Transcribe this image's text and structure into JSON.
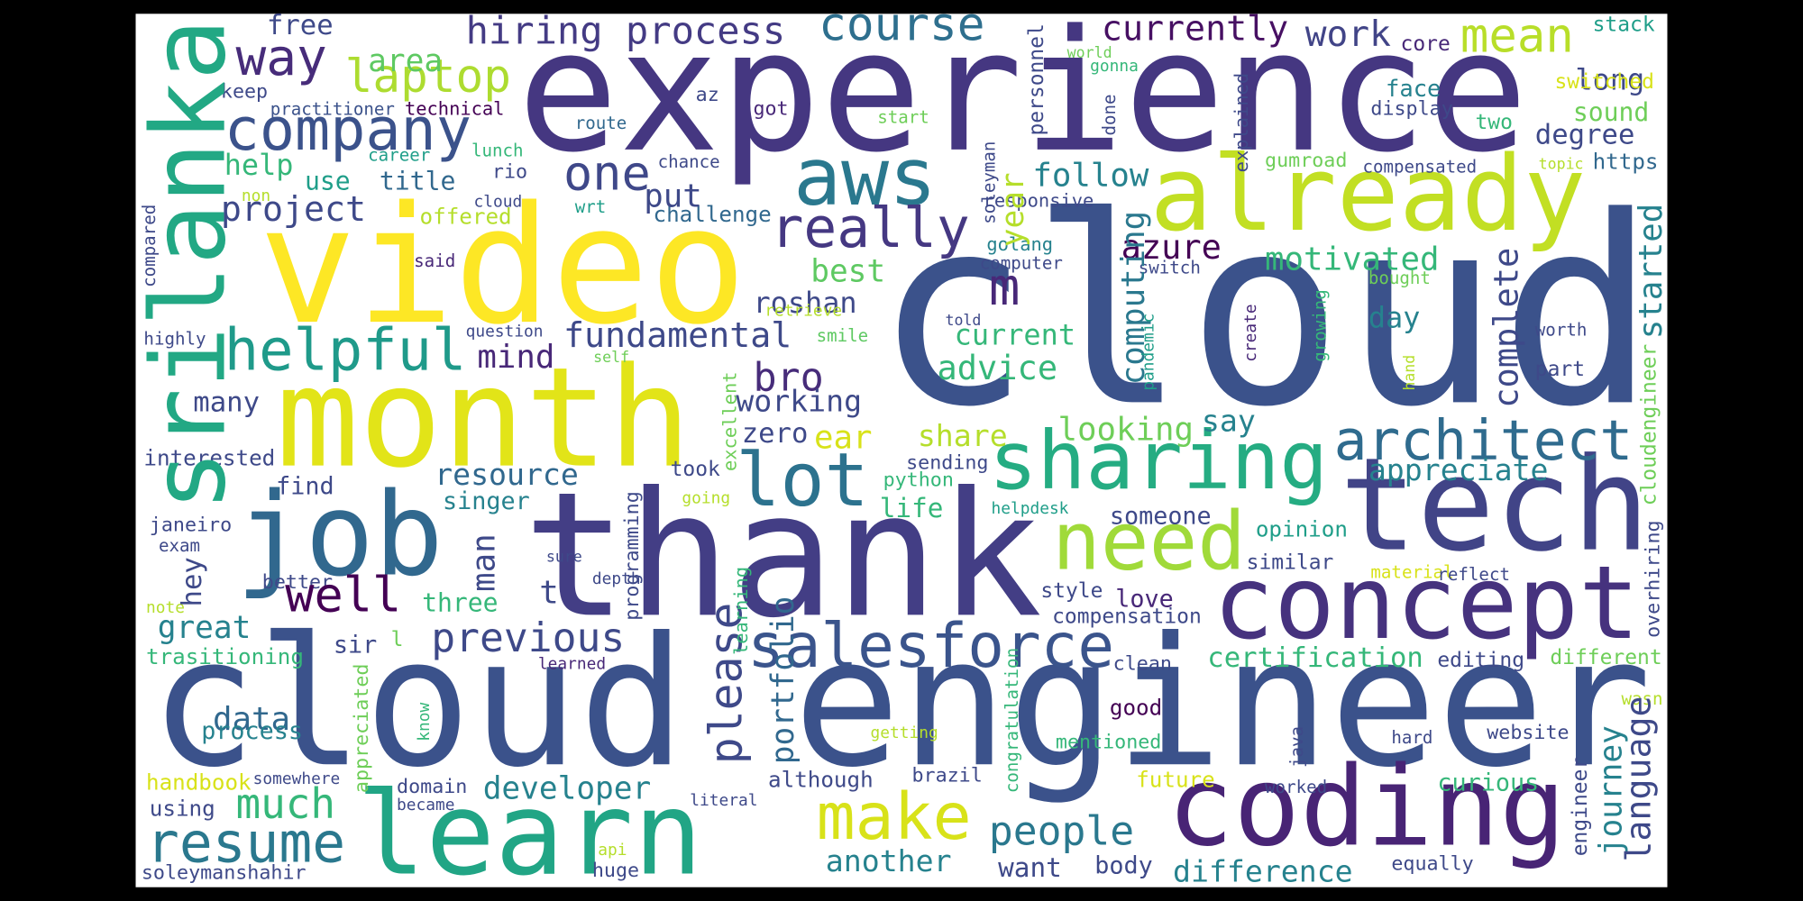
{
  "words": [
    "experience",
    "cloud",
    "video",
    "month",
    "thank",
    "job",
    "cloud engineer",
    "learn",
    "tech",
    "concept",
    "coding",
    "already",
    "aws",
    "sharing",
    "lot",
    "architect",
    "need",
    "salesforce",
    "make",
    "people",
    "really",
    "one",
    "company",
    "way",
    "laptop",
    "hiring process",
    "course",
    "currently",
    "work",
    "mean",
    "core",
    "long",
    "stack",
    "free",
    "area",
    "keep",
    "practitioner",
    "technical",
    "az",
    "got",
    "route",
    "start",
    "face",
    "display",
    "world",
    "gonna",
    "switched",
    "sound",
    "degree",
    "two",
    "https",
    "topic",
    "compensated",
    "gumroad",
    "help",
    "use",
    "title",
    "career",
    "lunch",
    "rio",
    "non",
    "cloud",
    "wrt",
    "chance",
    "challenge",
    "put",
    "project",
    "offered",
    "follow",
    "responsive",
    "golang",
    "computer",
    "switch",
    "azure",
    "m",
    "best",
    "motivated",
    "said",
    "roshan",
    "retrieve",
    "told",
    "fundamental",
    "smile",
    "current",
    "day",
    "bought",
    "worth",
    "highly",
    "question",
    "self",
    "mind",
    "helpful",
    "bro",
    "advice",
    "part",
    "many",
    "working",
    "ear",
    "share",
    "looking",
    "say",
    "zero",
    "interested",
    "find",
    "resource",
    "sending",
    "took",
    "appreciate",
    "python",
    "life",
    "someone",
    "singer",
    "going",
    "helpdesk",
    "janeiro",
    "exam",
    "opinion",
    "better",
    "similar",
    "material",
    "reflect",
    "sure",
    "depth",
    "three",
    "style",
    "love",
    "t",
    "well",
    "great",
    "note",
    "compensation",
    "previous",
    "sir",
    "l",
    "certification",
    "editing",
    "different",
    "trasitioning",
    "learned",
    "data",
    "process",
    "clean",
    "good",
    "wasn",
    "getting",
    "mentioned",
    "hard",
    "website",
    "handbook",
    "somewhere",
    "domain",
    "although",
    "brazil",
    "developer",
    "future",
    "worked",
    "curious",
    "much",
    "literal",
    "became",
    "using",
    "resume",
    "api",
    "huge",
    "another",
    "want",
    "body",
    "difference",
    "equally",
    "soleymanshahir",
    "srilanka",
    "year",
    "computing",
    "please",
    "portfolio",
    "personnel",
    "done",
    "soleyman",
    "explained",
    "compared",
    "create",
    "growing",
    "pandemic",
    "hand",
    "cloudengineer",
    "overhiring",
    "started",
    "complete",
    "journey",
    "language",
    "engineer",
    "java",
    "congratulation",
    "know",
    "appreciated",
    "learning",
    "excellent",
    "programming",
    "man",
    "hey"
  ]
}
